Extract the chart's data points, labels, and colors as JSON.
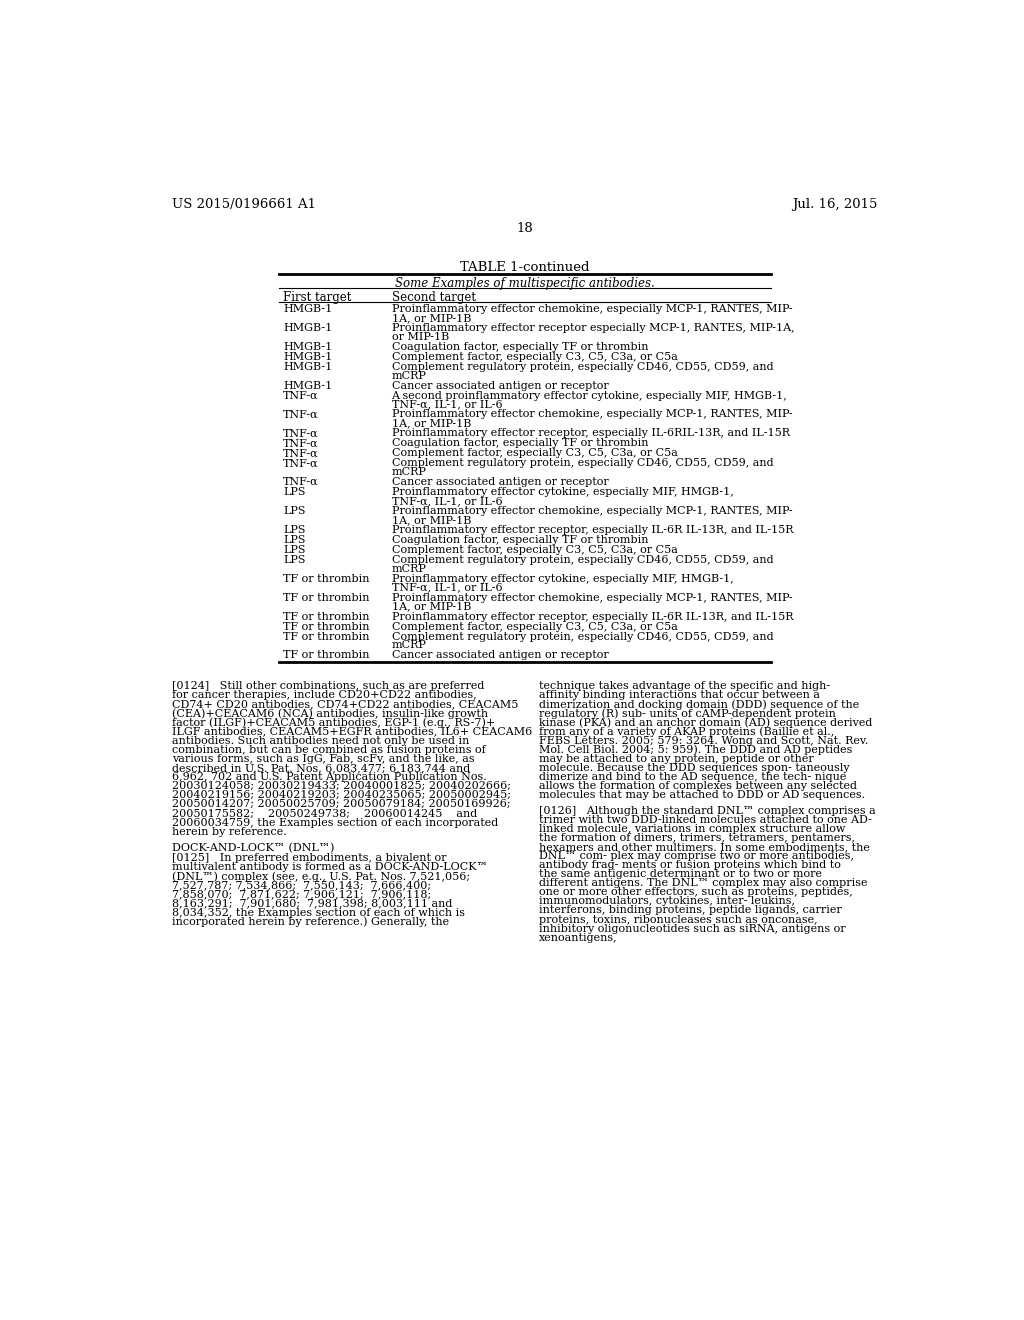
{
  "bg_color": "#ffffff",
  "header_left": "US 2015/0196661 A1",
  "header_right": "Jul. 16, 2015",
  "page_number": "18",
  "table_title": "TABLE 1-continued",
  "table_subtitle": "Some Examples of multispecific antibodies.",
  "col1_header": "First target",
  "col2_header": "Second target",
  "table_rows": [
    [
      "HMGB-1",
      "Proinflammatory effector chemokine, especially MCP-1, RANTES, MIP-\n1A, or MIP-1B"
    ],
    [
      "HMGB-1",
      "Proinflammatory effector receptor especially MCP-1, RANTES, MIP-1A,\nor MIP-1B"
    ],
    [
      "HMGB-1",
      "Coagulation factor, especially TF or thrombin"
    ],
    [
      "HMGB-1",
      "Complement factor, especially C3, C5, C3a, or C5a"
    ],
    [
      "HMGB-1",
      "Complement regulatory protein, especially CD46, CD55, CD59, and\nmCRP"
    ],
    [
      "HMGB-1",
      "Cancer associated antigen or receptor"
    ],
    [
      "TNF-α",
      "A second proinflammatory effector cytokine, especially MIF, HMGB-1,\nTNF-α, IL-1, or IL-6"
    ],
    [
      "TNF-α",
      "Proinflammatory effector chemokine, especially MCP-1, RANTES, MIP-\n1A, or MIP-1B"
    ],
    [
      "TNF-α",
      "Proinflammatory effector receptor, especially IL-6RIL-13R, and IL-15R"
    ],
    [
      "TNF-α",
      "Coagulation factor, especially TF or thrombin"
    ],
    [
      "TNF-α",
      "Complement factor, especially C3, C5, C3a, or C5a"
    ],
    [
      "TNF-α",
      "Complement regulatory protein, especially CD46, CD55, CD59, and\nmCRP"
    ],
    [
      "TNF-α",
      "Cancer associated antigen or receptor"
    ],
    [
      "LPS",
      "Proinflammatory effector cytokine, especially MIF, HMGB-1,\nTNF-α, IL-1, or IL-6"
    ],
    [
      "LPS",
      "Proinflammatory effector chemokine, especially MCP-1, RANTES, MIP-\n1A, or MIP-1B"
    ],
    [
      "LPS",
      "Proinflammatory effector receptor, especially IL-6R IL-13R, and IL-15R"
    ],
    [
      "LPS",
      "Coagulation factor, especially TF or thrombin"
    ],
    [
      "LPS",
      "Complement factor, especially C3, C5, C3a, or C5a"
    ],
    [
      "LPS",
      "Complement regulatory protein, especially CD46, CD55, CD59, and\nmCRP"
    ],
    [
      "TF or thrombin",
      "Proinflammatory effector cytokine, especially MIF, HMGB-1,\nTNF-α, IL-1, or IL-6"
    ],
    [
      "TF or thrombin",
      "Proinflammatory effector chemokine, especially MCP-1, RANTES, MIP-\n1A, or MIP-1B"
    ],
    [
      "TF or thrombin",
      "Proinflammatory effector receptor, especially IL-6R IL-13R, and IL-15R"
    ],
    [
      "TF or thrombin",
      "Complement factor, especially C3, C5, C3a, or C5a"
    ],
    [
      "TF or thrombin",
      "Complement regulatory protein, especially CD46, CD55, CD59, and\nmCRP"
    ],
    [
      "TF or thrombin",
      "Cancer associated antigen or receptor"
    ]
  ],
  "para_0124_left": "[0124]   Still other combinations, such as are preferred for cancer therapies, include CD20+CD22 antibodies, CD74+ CD20 antibodies, CD74+CD22 antibodies, CEACAM5 (CEA)+CEACAM6 (NCA) antibodies, insulin-like growth factor (ILGF)+CEACAM5 antibodies, EGP-1 (e.g., RS-7)+ ILGF antibodies, CEACAM5+EGFR antibodies, IL6+ CEACAM6 antibodies. Such antibodies need not only be used in combination, but can be combined as fusion proteins of various forms, such as IgG, Fab, scFv, and the like, as described in U.S. Pat. Nos. 6,083,477; 6,183,744 and 6,962, 702 and U.S. Patent Application Publication Nos. 20030124058; 20030219433; 20040001825; 20040202666; 20040219156; 20040219203; 20040235065; 20050002945; 20050014207; 20050025709; 20050079184; 20050169926; 20050175582;    20050249738;    20060014245    and 20060034759, the Examples section of each incorporated herein by reference.",
  "para_dock_right": "technique takes advantage of the specific and high-affinity binding interactions that occur between a dimerization and docking domain (DDD) sequence of the regulatory (R) sub- units of cAMP-dependent protein kinase (PKA) and an anchor domain (AD) sequence derived from any of a variety of AKAP proteins (Baillie et al., FEBS Letters. 2005; 579: 3264. Wong and Scott, Nat. Rev. Mol. Cell Biol. 2004; 5: 959). The DDD and AD peptides may be attached to any protein, peptide or other molecule. Because the DDD sequences spon- taneously dimerize and bind to the AD sequence, the tech- nique allows the formation of complexes between any selected molecules that may be attached to DDD or AD sequences.",
  "para_0125_heading": "DOCK-AND-LOCK™ (DNL™)",
  "para_0125_body": "[0125]   In preferred embodiments, a bivalent or multivalent antibody is formed as a DOCK-AND-LOCK™ (DNL™) complex (see, e.g., U.S. Pat. Nos. 7,521,056; 7,527,787; 7,534,866;  7,550,143;  7,666,400;  7,858,070;  7,871,622; 7,906,121;  7,906,118;  8,163,291;  7,901,680;  7,981,398; 8,003,111 and 8,034,352, the Examples section of each of which is incorporated herein by reference.) Generally, the",
  "para_0126_right": "[0126]   Although the standard DNL™ complex comprises a trimer with two DDD-linked molecules attached to one AD- linked molecule, variations in complex structure allow the formation of dimers, trimers, tetramers, pentamers, hexamers and other multimers. In some embodiments, the DNL™ com- plex may comprise two or more antibodies, antibody frag- ments or fusion proteins which bind to the same antigenic determinant or to two or more different antigens. The DNL™ complex may also comprise one or more other effectors, such as proteins, peptides, immunomodulators, cytokines, inter- leukins, interferons, binding proteins, peptide ligands, carrier proteins, toxins, ribonucleases such as onconase, inhibitory oligonucleotides such as siRNA, antigens or xenoantigens,"
}
